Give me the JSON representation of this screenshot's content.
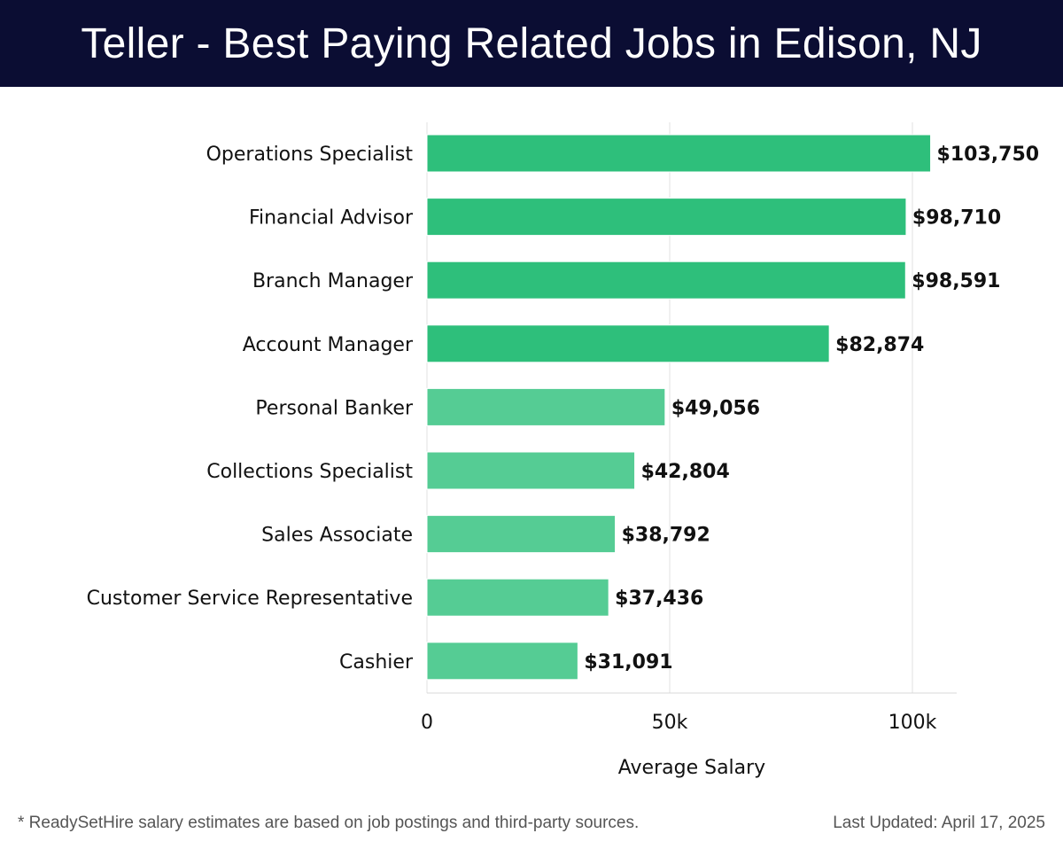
{
  "title": "Teller - Best Paying Related Jobs in Edison, NJ",
  "footnote": "* ReadySetHire salary estimates are based on job postings and third-party sources.",
  "last_updated": "Last Updated: April 17, 2025",
  "colors": {
    "header_bg": "#0b0d33",
    "bar_high": "#2ebf7b",
    "bar_low": "#55cc94"
  },
  "chart_data": {
    "type": "bar",
    "orientation": "horizontal",
    "categories": [
      "Operations Specialist",
      "Financial Advisor",
      "Branch Manager",
      "Account Manager",
      "Personal Banker",
      "Collections Specialist",
      "Sales Associate",
      "Customer Service Representative",
      "Cashier"
    ],
    "values": [
      103750,
      98710,
      98591,
      82874,
      49056,
      42804,
      38792,
      37436,
      31091
    ],
    "value_labels": [
      "$103,750",
      "$98,710",
      "$98,591",
      "$82,874",
      "$49,056",
      "$42,804",
      "$38,792",
      "$37,436",
      "$31,091"
    ],
    "xlabel": "Average Salary",
    "xlim": [
      0,
      109000
    ],
    "xticks": [
      0,
      50000,
      100000
    ],
    "xtick_labels": [
      "0",
      "50k",
      "100k"
    ],
    "grid": "vertical"
  }
}
